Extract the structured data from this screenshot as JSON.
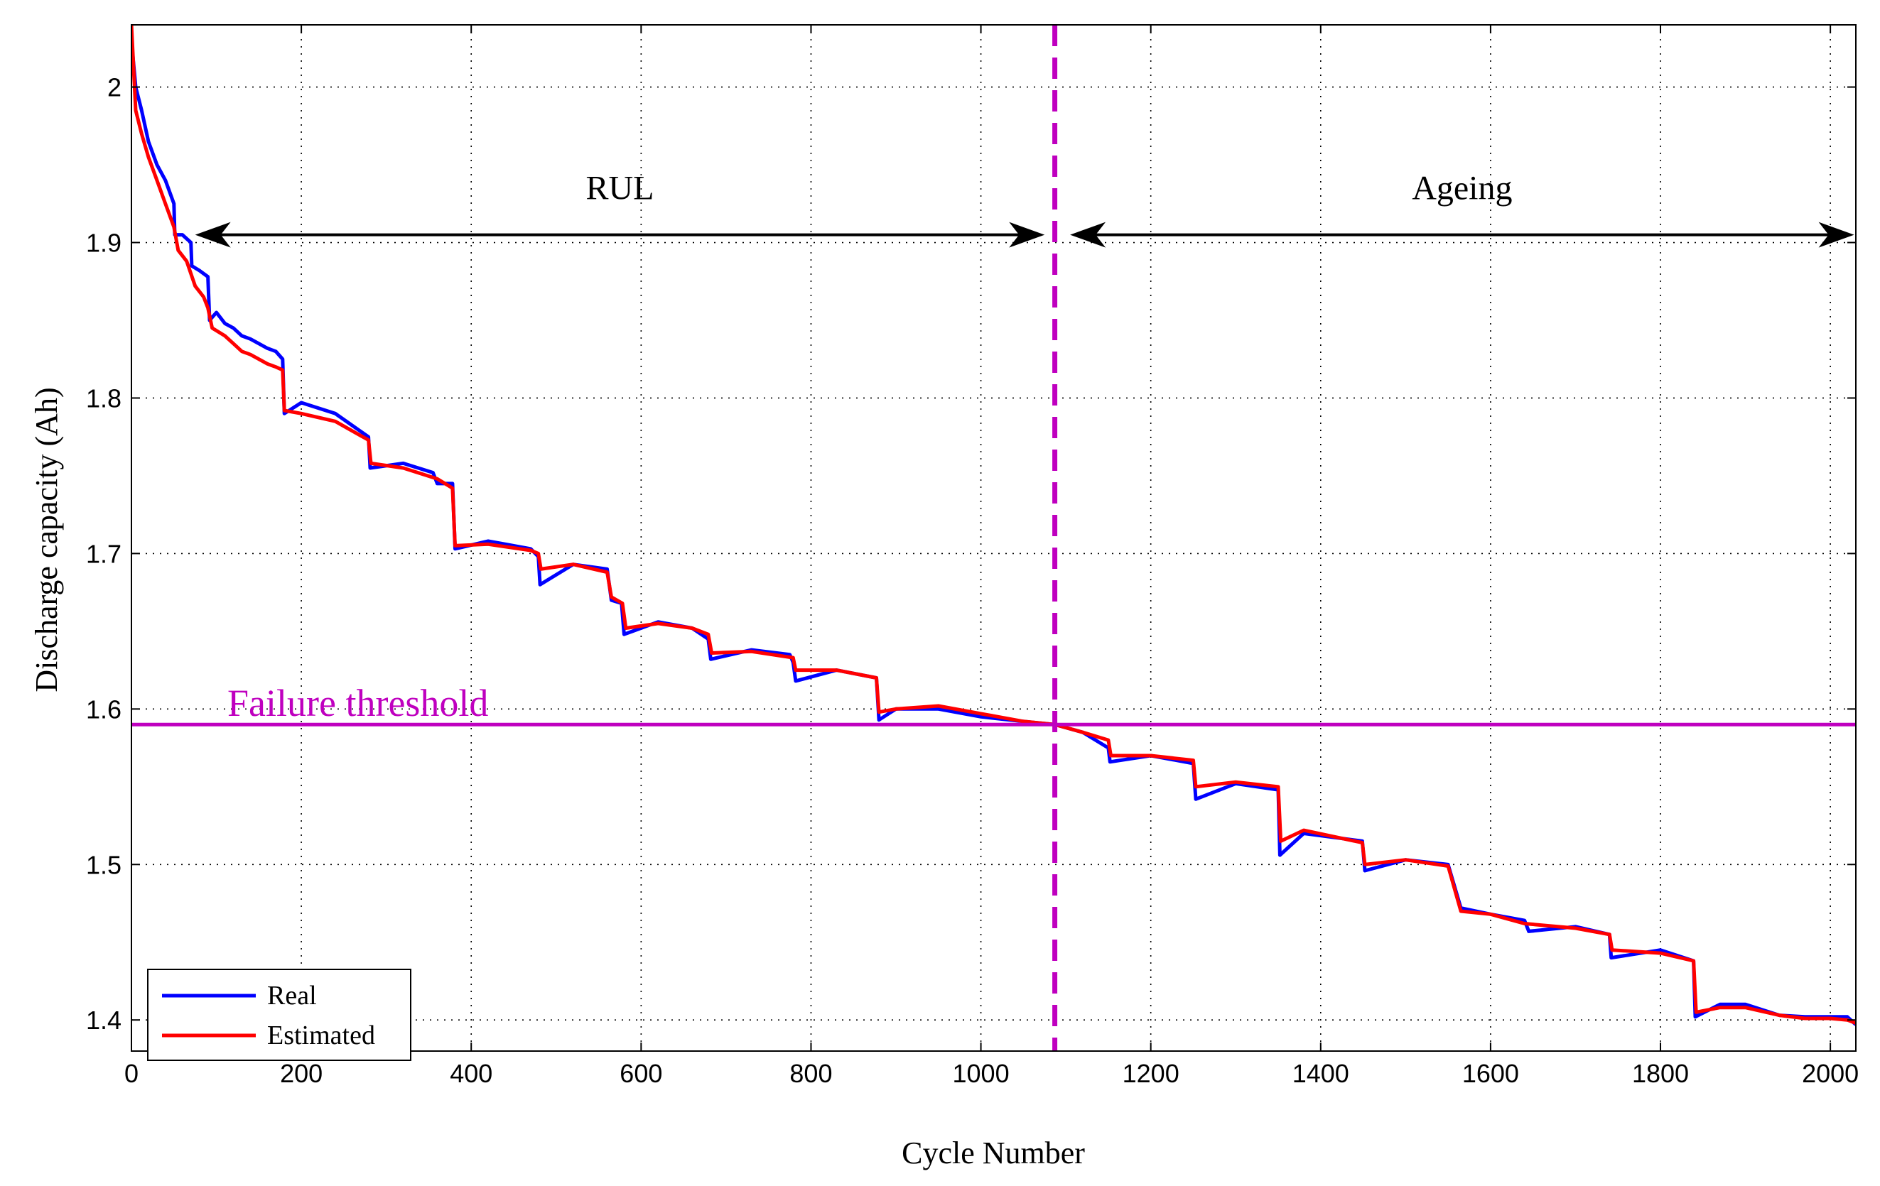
{
  "colors": {
    "real": "#0000ff",
    "estimated": "#ff0000",
    "threshold": "#bf00bf",
    "grid": "#000000",
    "axis": "#000000"
  },
  "chart_data": {
    "type": "line",
    "xlabel": "Cycle Number",
    "ylabel": "Discharge capacity (Ah)",
    "xlim": [
      0,
      2030
    ],
    "ylim": [
      1.38,
      2.04
    ],
    "xticks": [
      0,
      200,
      400,
      600,
      800,
      1000,
      1200,
      1400,
      1600,
      1800,
      2000
    ],
    "yticks": [
      1.4,
      1.5,
      1.6,
      1.7,
      1.8,
      1.9,
      2.0
    ],
    "xtick_labels": [
      "0",
      "200",
      "400",
      "600",
      "800",
      "1000",
      "1200",
      "1400",
      "1600",
      "1800",
      "2000"
    ],
    "ytick_labels": [
      "1.4",
      "1.5",
      "1.6",
      "1.7",
      "1.8",
      "1.9",
      "2"
    ],
    "grid": true,
    "legend_position": "bottom-left",
    "series": [
      {
        "name": "Real",
        "x": [
          0,
          5,
          12,
          20,
          30,
          40,
          50,
          51,
          60,
          70,
          71,
          80,
          90,
          92,
          100,
          110,
          120,
          130,
          140,
          150,
          160,
          170,
          178,
          180,
          200,
          240,
          279,
          281,
          320,
          355,
          360,
          378,
          381,
          420,
          470,
          479,
          481,
          520,
          560,
          565,
          577,
          580,
          620,
          660,
          679,
          682,
          730,
          775,
          779,
          782,
          830,
          877,
          880,
          900,
          950,
          1000,
          1050,
          1087,
          1120,
          1150,
          1152,
          1200,
          1250,
          1253,
          1300,
          1350,
          1352,
          1380,
          1449,
          1452,
          1500,
          1550,
          1565,
          1600,
          1640,
          1645,
          1700,
          1740,
          1742,
          1800,
          1839,
          1841,
          1870,
          1900,
          1940,
          1970,
          2000,
          2020,
          2030
        ],
        "values": [
          2.03,
          2.0,
          1.985,
          1.965,
          1.95,
          1.94,
          1.925,
          1.905,
          1.905,
          1.9,
          1.885,
          1.882,
          1.878,
          1.85,
          1.855,
          1.848,
          1.845,
          1.84,
          1.838,
          1.835,
          1.832,
          1.83,
          1.825,
          1.79,
          1.797,
          1.79,
          1.775,
          1.755,
          1.758,
          1.752,
          1.745,
          1.745,
          1.703,
          1.708,
          1.703,
          1.698,
          1.68,
          1.693,
          1.69,
          1.67,
          1.668,
          1.648,
          1.656,
          1.652,
          1.645,
          1.632,
          1.638,
          1.635,
          1.63,
          1.618,
          1.625,
          1.62,
          1.593,
          1.6,
          1.6,
          1.595,
          1.592,
          1.59,
          1.585,
          1.575,
          1.566,
          1.57,
          1.565,
          1.542,
          1.552,
          1.548,
          1.506,
          1.52,
          1.515,
          1.496,
          1.503,
          1.5,
          1.472,
          1.468,
          1.464,
          1.457,
          1.46,
          1.455,
          1.44,
          1.445,
          1.438,
          1.402,
          1.41,
          1.41,
          1.403,
          1.402,
          1.402,
          1.402,
          1.397
        ]
      },
      {
        "name": "Estimated",
        "x": [
          0,
          5,
          12,
          20,
          30,
          40,
          50,
          55,
          65,
          75,
          85,
          90,
          95,
          110,
          120,
          130,
          140,
          150,
          160,
          170,
          178,
          180,
          200,
          240,
          279,
          282,
          320,
          360,
          378,
          381,
          420,
          470,
          479,
          482,
          520,
          560,
          565,
          578,
          582,
          620,
          660,
          679,
          683,
          730,
          779,
          782,
          830,
          877,
          880,
          900,
          950,
          1000,
          1050,
          1087,
          1120,
          1150,
          1153,
          1200,
          1250,
          1253,
          1300,
          1350,
          1353,
          1380,
          1449,
          1452,
          1500,
          1550,
          1565,
          1600,
          1640,
          1700,
          1740,
          1743,
          1800,
          1839,
          1842,
          1870,
          1900,
          1940,
          1970,
          2000,
          2020,
          2030
        ],
        "values": [
          2.04,
          1.985,
          1.97,
          1.955,
          1.94,
          1.925,
          1.91,
          1.895,
          1.888,
          1.872,
          1.865,
          1.858,
          1.845,
          1.84,
          1.835,
          1.83,
          1.828,
          1.825,
          1.822,
          1.82,
          1.818,
          1.792,
          1.79,
          1.785,
          1.773,
          1.758,
          1.755,
          1.748,
          1.742,
          1.705,
          1.706,
          1.702,
          1.7,
          1.69,
          1.693,
          1.688,
          1.672,
          1.668,
          1.652,
          1.655,
          1.652,
          1.648,
          1.636,
          1.637,
          1.633,
          1.625,
          1.625,
          1.62,
          1.598,
          1.6,
          1.602,
          1.597,
          1.592,
          1.59,
          1.585,
          1.58,
          1.57,
          1.57,
          1.567,
          1.55,
          1.553,
          1.55,
          1.515,
          1.522,
          1.514,
          1.5,
          1.503,
          1.499,
          1.47,
          1.468,
          1.462,
          1.459,
          1.455,
          1.445,
          1.443,
          1.438,
          1.405,
          1.408,
          1.408,
          1.403,
          1.401,
          1.401,
          1.4,
          1.398
        ]
      }
    ],
    "threshold": {
      "label": "Failure threshold",
      "value": 1.59
    },
    "failure_cycle": 1087,
    "annotations": [
      {
        "id": "rul",
        "label": "RUL",
        "x_from": 75,
        "x_to": 1075,
        "y": 1.905
      },
      {
        "id": "ageing",
        "label": "Ageing",
        "x_from": 1105,
        "x_to": 2028,
        "y": 1.905
      }
    ]
  }
}
